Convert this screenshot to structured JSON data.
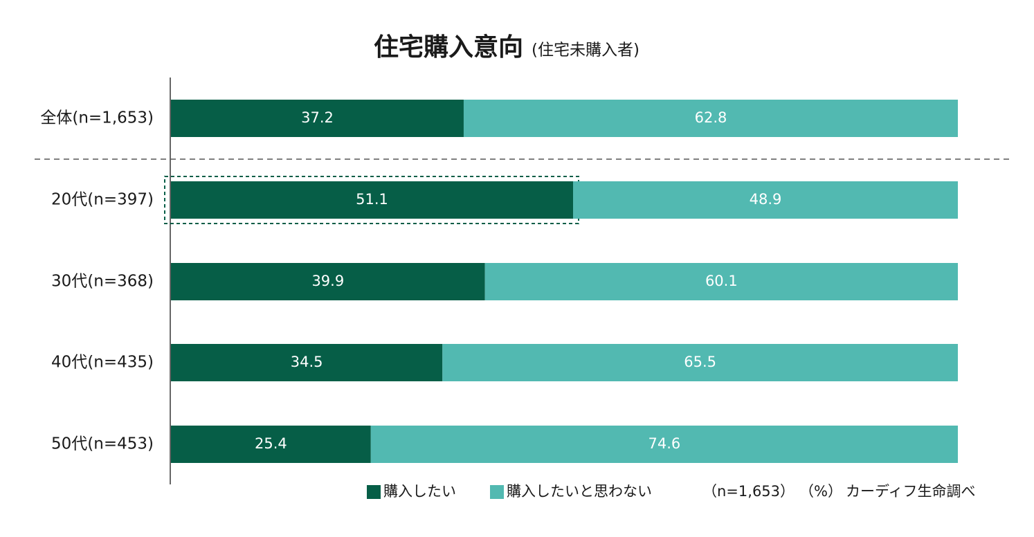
{
  "chart_data": {
    "type": "stacked-bar-horizontal",
    "title": "住宅購入意向",
    "subtitle": "(住宅未購入者)",
    "categories": [
      "全体(n=1,653)",
      "20代(n=397)",
      "30代(n=368)",
      "40代(n=435)",
      "50代(n=453)"
    ],
    "series": [
      {
        "name": "購入したい",
        "color": "#065e47",
        "values": [
          37.2,
          51.1,
          39.9,
          34.5,
          25.4
        ]
      },
      {
        "name": "購入したいと思わない",
        "color": "#52b9b1",
        "values": [
          62.8,
          48.9,
          60.1,
          65.5,
          74.6
        ]
      }
    ],
    "xlim": [
      0,
      100
    ],
    "notes": [
      "（n=1,653）",
      "（%）",
      "カーディフ生命調べ"
    ]
  }
}
